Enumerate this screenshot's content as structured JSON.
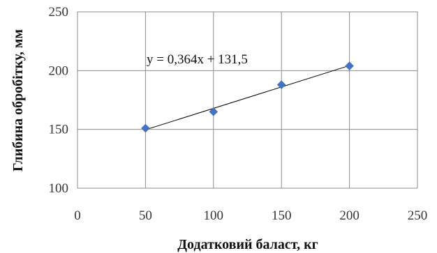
{
  "chart_data": {
    "type": "scatter",
    "title": "",
    "xlabel": "Додатковий баласт, кг",
    "ylabel": "Глибина обробітку, мм",
    "xlim": [
      0,
      250
    ],
    "ylim": [
      100,
      250
    ],
    "x_ticks": [
      "0",
      "50",
      "100",
      "150",
      "200",
      "250"
    ],
    "y_ticks": [
      "100",
      "150",
      "200",
      "250"
    ],
    "grid": true,
    "legend": "none",
    "series": [
      {
        "x": [
          50,
          100,
          150,
          200
        ],
        "y": [
          151,
          165,
          188,
          204
        ],
        "color": "#4472c4",
        "marker": "diamond"
      }
    ],
    "trendline": {
      "slope": 0.364,
      "intercept": 131.5,
      "x_range": [
        50,
        200
      ],
      "color": "#000000",
      "equation": "y = 0,364x + 131,5"
    }
  }
}
